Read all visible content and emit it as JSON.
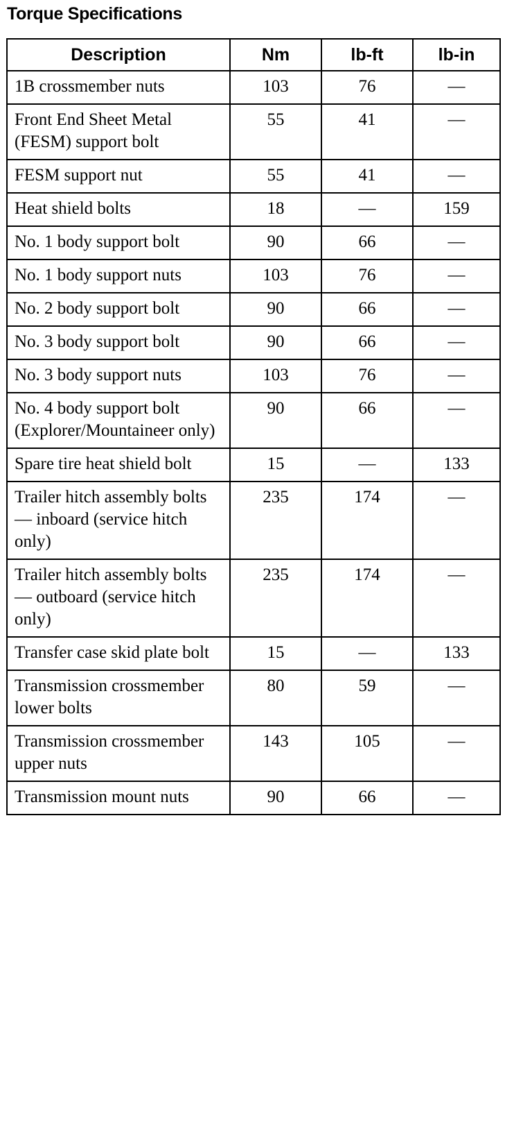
{
  "title": "Torque Specifications",
  "columns": [
    "Description",
    "Nm",
    "lb-ft",
    "lb-in"
  ],
  "rows": [
    {
      "description": "1B crossmember nuts",
      "nm": "103",
      "lbft": "76",
      "lbin": "—"
    },
    {
      "description": "Front End Sheet Metal (FESM) support bolt",
      "nm": "55",
      "lbft": "41",
      "lbin": "—"
    },
    {
      "description": "FESM support nut",
      "nm": "55",
      "lbft": "41",
      "lbin": "—"
    },
    {
      "description": "Heat shield bolts",
      "nm": "18",
      "lbft": "—",
      "lbin": "159"
    },
    {
      "description": "No. 1 body support bolt",
      "nm": "90",
      "lbft": "66",
      "lbin": "—"
    },
    {
      "description": "No. 1 body support nuts",
      "nm": "103",
      "lbft": "76",
      "lbin": "—"
    },
    {
      "description": "No. 2 body support bolt",
      "nm": "90",
      "lbft": "66",
      "lbin": "—"
    },
    {
      "description": "No. 3 body support bolt",
      "nm": "90",
      "lbft": "66",
      "lbin": "—"
    },
    {
      "description": "No. 3 body support nuts",
      "nm": "103",
      "lbft": "76",
      "lbin": "—"
    },
    {
      "description": "No. 4 body support bolt (Explorer/Mountaineer only)",
      "nm": "90",
      "lbft": "66",
      "lbin": "—"
    },
    {
      "description": "Spare tire heat shield bolt",
      "nm": "15",
      "lbft": "—",
      "lbin": "133"
    },
    {
      "description": "Trailer hitch assembly bolts — inboard (service hitch only)",
      "nm": "235",
      "lbft": "174",
      "lbin": "—"
    },
    {
      "description": "Trailer hitch assembly bolts — outboard (service hitch only)",
      "nm": "235",
      "lbft": "174",
      "lbin": "—"
    },
    {
      "description": "Transfer case skid plate bolt",
      "nm": "15",
      "lbft": "—",
      "lbin": "133"
    },
    {
      "description": "Transmission crossmember lower bolts",
      "nm": "80",
      "lbft": "59",
      "lbin": "—"
    },
    {
      "description": "Transmission crossmember upper nuts",
      "nm": "143",
      "lbft": "105",
      "lbin": "—"
    },
    {
      "description": "Transmission mount nuts",
      "nm": "90",
      "lbft": "66",
      "lbin": "—"
    }
  ]
}
